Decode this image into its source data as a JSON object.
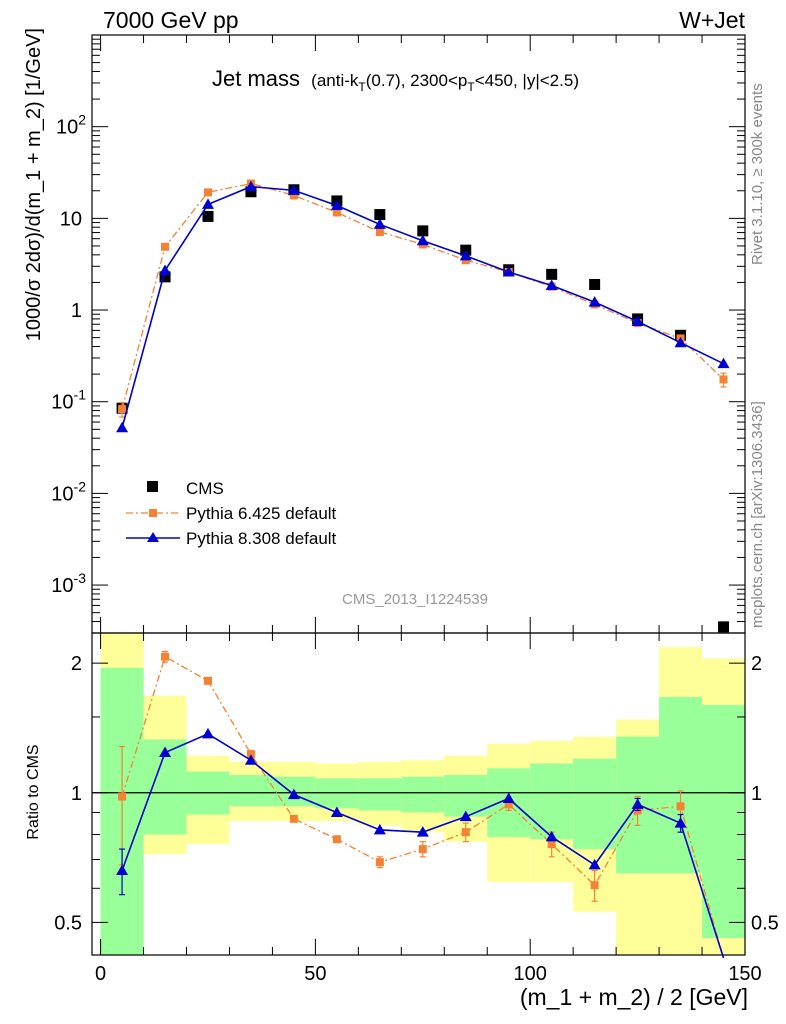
{
  "header": {
    "left": "7000 GeV pp",
    "right": "W+Jet"
  },
  "title": {
    "main": "Jet mass",
    "sub_a": "(anti-k",
    "sub_a_sub": "T",
    "sub_b": "(0.7), 2300<p",
    "sub_b_sub": "T",
    "sub_c": "<450, |y|<2.5)"
  },
  "side_labels": {
    "rivet": "Rivet 3.1.10, ≥ 300k events",
    "mcplots": "mcplots.cern.ch [arXiv:1306.3436]"
  },
  "analysis_label": "CMS_2013_I1224539",
  "colors": {
    "cms": "#000000",
    "pythia6": "#f58233",
    "pythia8": "#0000d0",
    "band_inner": "#99ff99",
    "band_outer": "#ffff99"
  },
  "chart_data": [
    {
      "type": "scatter",
      "panel": "main",
      "xlabel": "",
      "ylabel": "1000/σ 2dσ)/d(m_1 + m_2) [1/GeV]",
      "xlim": [
        -2,
        150
      ],
      "ylim": [
        0.0003,
        1000
      ],
      "yscale": "log",
      "yticks": [
        {
          "v": 0.001,
          "label": "10",
          "exp": "-3"
        },
        {
          "v": 0.01,
          "label": "10",
          "exp": "-2"
        },
        {
          "v": 0.1,
          "label": "10",
          "exp": "-1"
        },
        {
          "v": 1,
          "label": "1",
          "exp": ""
        },
        {
          "v": 10,
          "label": "10",
          "exp": ""
        },
        {
          "v": 100,
          "label": "10",
          "exp": "2"
        }
      ],
      "legend_position": "bottom-left",
      "series": [
        {
          "name": "CMS",
          "style": "markers",
          "x": [
            5,
            15,
            25,
            35,
            45,
            55,
            65,
            75,
            85,
            95,
            105,
            115,
            125,
            135,
            145
          ],
          "y": [
            0.085,
            2.3,
            10.5,
            19.5,
            20.5,
            15.5,
            11,
            7.3,
            4.5,
            2.75,
            2.45,
            1.9,
            0.8,
            0.53,
            0.00035
          ]
        },
        {
          "name": "Pythia 6.425 default",
          "style": "dashdot-squares",
          "x": [
            5,
            15,
            25,
            35,
            45,
            55,
            65,
            75,
            85,
            95,
            105,
            115,
            125,
            135,
            145
          ],
          "y": [
            0.083,
            4.9,
            19.2,
            24,
            17.8,
            11.6,
            7.1,
            5.2,
            3.5,
            2.6,
            1.8,
            1.15,
            0.72,
            0.49,
            0.175
          ],
          "err": [
            0.015,
            0,
            0,
            0,
            0,
            0,
            0,
            0,
            0,
            0,
            0,
            0,
            0,
            0,
            0.03
          ]
        },
        {
          "name": "Pythia 8.308 default",
          "style": "solid-triangles",
          "x": [
            5,
            15,
            25,
            35,
            45,
            55,
            65,
            75,
            85,
            95,
            105,
            115,
            125,
            135,
            145
          ],
          "y": [
            0.052,
            2.7,
            14.2,
            22.2,
            20.2,
            13.8,
            8.6,
            5.7,
            3.9,
            2.6,
            1.85,
            1.22,
            0.75,
            0.44,
            0.26
          ]
        }
      ]
    },
    {
      "type": "line",
      "panel": "ratio",
      "xlabel": "(m_1 + m_2) / 2 [GeV]",
      "ylabel": "Ratio to CMS",
      "xlim": [
        -2,
        150
      ],
      "ylim": [
        0.42,
        2.35
      ],
      "yscale": "log",
      "xticks": [
        0,
        50,
        100,
        150
      ],
      "yticks": [
        0.5,
        1,
        2
      ],
      "reference": 1,
      "bands": {
        "x_edges": [
          0,
          10,
          20,
          30,
          40,
          50,
          60,
          70,
          80,
          90,
          100,
          110,
          120,
          130,
          140,
          150
        ],
        "outer_low": [
          0.4,
          0.72,
          0.76,
          0.86,
          0.86,
          0.86,
          0.84,
          0.81,
          0.77,
          0.62,
          0.62,
          0.53,
          0.4,
          0.4,
          0.4
        ],
        "outer_high": [
          2.5,
          1.68,
          1.22,
          1.18,
          1.18,
          1.17,
          1.18,
          1.19,
          1.22,
          1.3,
          1.32,
          1.35,
          1.48,
          2.18,
          2.05
        ],
        "inner_low": [
          0.4,
          0.8,
          0.89,
          0.93,
          0.93,
          0.92,
          0.91,
          0.9,
          0.88,
          0.79,
          0.78,
          0.74,
          0.65,
          0.65,
          0.46
        ],
        "inner_high": [
          1.95,
          1.33,
          1.12,
          1.1,
          1.09,
          1.08,
          1.08,
          1.09,
          1.1,
          1.14,
          1.17,
          1.2,
          1.35,
          1.67,
          1.6
        ]
      },
      "series": [
        {
          "name": "Pythia 6.425 default",
          "style": "dashdot-squares",
          "x": [
            5,
            15,
            25,
            35,
            45,
            55,
            65,
            75,
            85,
            95,
            105,
            115,
            125,
            135,
            145
          ],
          "y": [
            0.98,
            2.07,
            1.82,
            1.23,
            0.87,
            0.78,
            0.69,
            0.74,
            0.81,
            0.94,
            0.76,
            0.61,
            0.91,
            0.93,
            0.4
          ],
          "err": [
            0.3,
            0.06,
            0.02,
            0.02,
            0.01,
            0.01,
            0.02,
            0.03,
            0.04,
            0.03,
            0.05,
            0.05,
            0.07,
            0.08,
            0
          ]
        },
        {
          "name": "Pythia 8.308 default",
          "style": "solid-triangles",
          "x": [
            5,
            15,
            25,
            35,
            45,
            55,
            65,
            75,
            85,
            95,
            105,
            115,
            125,
            135,
            145
          ],
          "y": [
            0.66,
            1.24,
            1.37,
            1.19,
            0.99,
            0.9,
            0.82,
            0.81,
            0.88,
            0.97,
            0.79,
            0.68,
            0.94,
            0.85,
            0.3
          ],
          "err": [
            0.08,
            0,
            0,
            0,
            0,
            0,
            0,
            0,
            0,
            0,
            0,
            0,
            0.03,
            0.04,
            0
          ]
        }
      ]
    }
  ]
}
